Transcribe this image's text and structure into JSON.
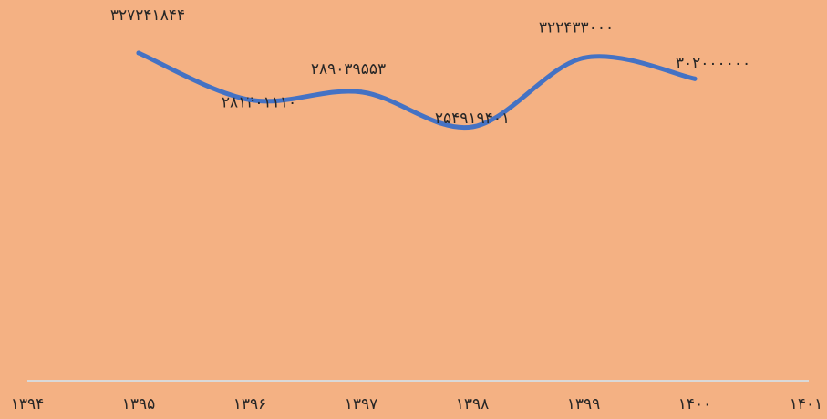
{
  "colors": {
    "background": "#F4B183",
    "line": "#4472C4",
    "axis": "#D9D9D9",
    "text": "#262626"
  },
  "chart_data": {
    "type": "line",
    "x_ticks": [
      "۱۳۹۴",
      "۱۳۹۵",
      "۱۳۹۶",
      "۱۳۹۷",
      "۱۳۹۸",
      "۱۳۹۹",
      "۱۴۰۰",
      "۱۴۰۱"
    ],
    "x": [
      "۱۳۹۵",
      "۱۳۹۶",
      "۱۳۹۷",
      "۱۳۹۸",
      "۱۳۹۹",
      "۱۴۰۰"
    ],
    "values": [
      327241844,
      281401110,
      289039553,
      254919401,
      322433000,
      302000000
    ],
    "data_labels": [
      "۳۲۷۲۴۱۸۴۴",
      "۲۸۱۴۰۱۱۱۰",
      "۲۸۹۰۳۹۵۵۳",
      "۲۵۴۹۱۹۴۰۱",
      "۳۲۲۴۳۳۰۰۰",
      "۳۰۲۰۰۰۰۰۰"
    ],
    "smooth": true,
    "grid": false,
    "legend": "none",
    "title": "",
    "xlabel": "",
    "ylabel": ""
  }
}
